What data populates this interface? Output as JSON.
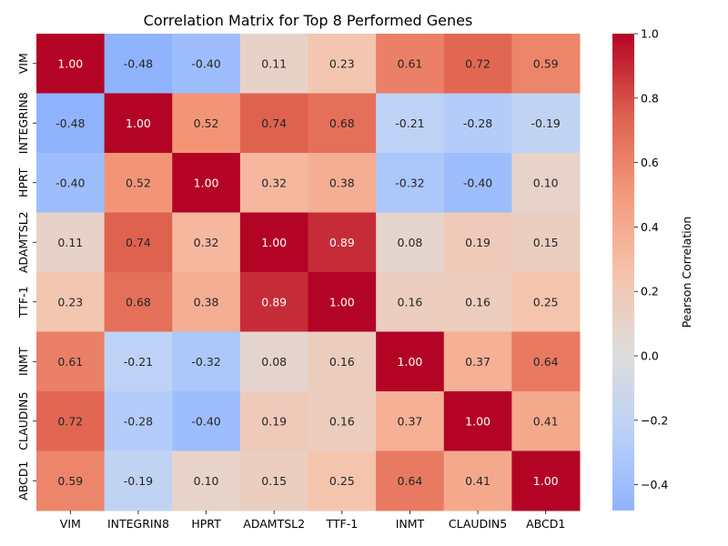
{
  "chart_data": {
    "type": "heatmap",
    "title": "Correlation Matrix for Top 8 Performed Genes",
    "categories": [
      "VIM",
      "INTEGRIN8",
      "HPRT",
      "ADAMTSL2",
      "TTF-1",
      "INMT",
      "CLAUDIN5",
      "ABCD1"
    ],
    "values": [
      [
        1.0,
        -0.48,
        -0.4,
        0.11,
        0.23,
        0.61,
        0.72,
        0.59
      ],
      [
        -0.48,
        1.0,
        0.52,
        0.74,
        0.68,
        -0.21,
        -0.28,
        -0.19
      ],
      [
        -0.4,
        0.52,
        1.0,
        0.32,
        0.38,
        -0.32,
        -0.4,
        0.1
      ],
      [
        0.11,
        0.74,
        0.32,
        1.0,
        0.89,
        0.08,
        0.19,
        0.15
      ],
      [
        0.23,
        0.68,
        0.38,
        0.89,
        1.0,
        0.16,
        0.16,
        0.25
      ],
      [
        0.61,
        -0.21,
        -0.32,
        0.08,
        0.16,
        1.0,
        0.37,
        0.64
      ],
      [
        0.72,
        -0.28,
        -0.4,
        0.19,
        0.16,
        0.37,
        1.0,
        0.41
      ],
      [
        0.59,
        -0.19,
        0.1,
        0.15,
        0.25,
        0.64,
        0.41,
        1.0
      ]
    ],
    "value_format": "0.00",
    "colormap": "coolwarm",
    "color_center": 0,
    "color_range": [
      -0.48,
      1.0
    ],
    "colorbar": {
      "label": "Pearson Correlation",
      "ticks": [
        -0.4,
        -0.2,
        0.0,
        0.2,
        0.4,
        0.6,
        0.8,
        1.0
      ],
      "tick_labels": [
        "−0.4",
        "−0.2",
        "0.0",
        "0.2",
        "0.4",
        "0.6",
        "0.8",
        "1.0"
      ]
    },
    "grid": false
  }
}
